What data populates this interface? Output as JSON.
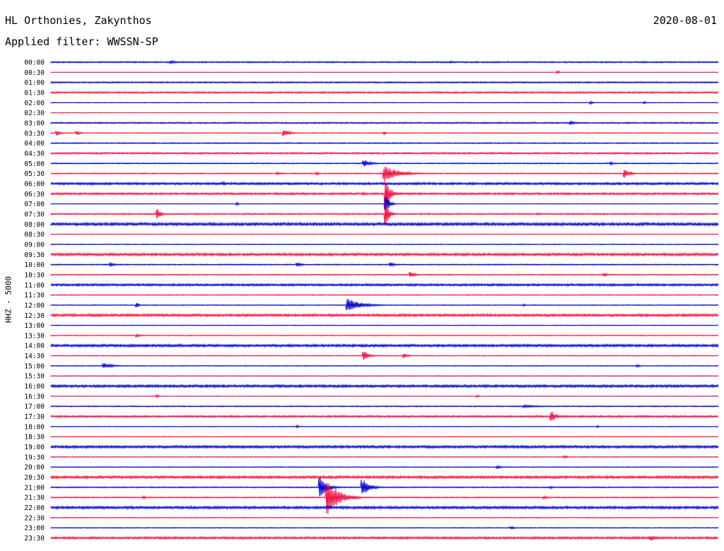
{
  "header": {
    "station": "HL Orthonies, Zakynthos",
    "date": "2020-08-01",
    "filter": "Applied filter: WWSSN-SP",
    "channel": "HHZ - 5000"
  },
  "chart_data": {
    "type": "line",
    "title": "HL Orthonies, Zakynthos",
    "colors": [
      "#0000cc",
      "#ee1144"
    ],
    "rows": [
      {
        "label": "00:00",
        "events": [
          {
            "t": 0.18,
            "a": 2,
            "d": 0.04
          },
          {
            "t": 0.6,
            "a": 1.5,
            "d": 0.02
          }
        ],
        "noise": 1
      },
      {
        "label": "00:30",
        "events": [
          {
            "t": 0.76,
            "a": 2,
            "d": 0.01
          }
        ],
        "noise": 0.4
      },
      {
        "label": "01:00",
        "events": [],
        "noise": 1
      },
      {
        "label": "01:30",
        "events": [],
        "noise": 1.2
      },
      {
        "label": "02:00",
        "events": [
          {
            "t": 0.81,
            "a": 2,
            "d": 0.01
          },
          {
            "t": 0.89,
            "a": 1.5,
            "d": 0.01
          }
        ],
        "noise": 0.5
      },
      {
        "label": "02:30",
        "events": [],
        "noise": 0.4
      },
      {
        "label": "03:00",
        "events": [
          {
            "t": 0.78,
            "a": 3,
            "d": 0.02
          }
        ],
        "noise": 1
      },
      {
        "label": "03:30",
        "events": [
          {
            "t": 0.01,
            "a": 4,
            "d": 0.015
          },
          {
            "t": 0.04,
            "a": 3,
            "d": 0.015
          },
          {
            "t": 0.35,
            "a": 5,
            "d": 0.025
          },
          {
            "t": 0.5,
            "a": 2,
            "d": 0.01
          }
        ],
        "noise": 0.6
      },
      {
        "label": "04:00",
        "events": [],
        "noise": 0.8
      },
      {
        "label": "04:30",
        "events": [],
        "noise": 1.2
      },
      {
        "label": "05:00",
        "events": [
          {
            "t": 0.47,
            "a": 5,
            "d": 0.03
          },
          {
            "t": 0.84,
            "a": 2,
            "d": 0.01
          }
        ],
        "noise": 0.8
      },
      {
        "label": "05:30",
        "events": [
          {
            "t": 0.34,
            "a": 2,
            "d": 0.02
          },
          {
            "t": 0.4,
            "a": 2,
            "d": 0.01
          },
          {
            "t": 0.5,
            "a": 12,
            "d": 0.06
          },
          {
            "t": 0.86,
            "a": 6,
            "d": 0.025
          }
        ],
        "noise": 0.8
      },
      {
        "label": "06:00",
        "events": [
          {
            "t": 0.26,
            "a": 3,
            "d": 0.01
          }
        ],
        "noise": 1.6
      },
      {
        "label": "06:30",
        "events": [
          {
            "t": 0.47,
            "a": 2,
            "d": 0.02
          },
          {
            "t": 0.502,
            "a": 22,
            "d": 0.02
          }
        ],
        "noise": 1.4
      },
      {
        "label": "07:00",
        "events": [
          {
            "t": 0.502,
            "a": 14,
            "d": 0.015
          },
          {
            "t": 0.28,
            "a": 2,
            "d": 0.005
          }
        ],
        "noise": 0.4
      },
      {
        "label": "07:30",
        "events": [
          {
            "t": 0.502,
            "a": 18,
            "d": 0.015
          },
          {
            "t": 0.16,
            "a": 8,
            "d": 0.015
          },
          {
            "t": 0.73,
            "a": 1.5,
            "d": 0.05
          }
        ],
        "noise": 1
      },
      {
        "label": "08:00",
        "events": [
          {
            "t": 0.23,
            "a": 2,
            "d": 0.01
          }
        ],
        "noise": 2
      },
      {
        "label": "08:30",
        "events": [],
        "noise": 0.5
      },
      {
        "label": "09:00",
        "events": [],
        "noise": 0.6
      },
      {
        "label": "09:30",
        "events": [],
        "noise": 1.8
      },
      {
        "label": "10:00",
        "events": [
          {
            "t": 0.09,
            "a": 3,
            "d": 0.02
          },
          {
            "t": 0.37,
            "a": 3,
            "d": 0.02
          },
          {
            "t": 0.51,
            "a": 3,
            "d": 0.02
          }
        ],
        "noise": 0.8
      },
      {
        "label": "10:30",
        "events": [
          {
            "t": 0.54,
            "a": 4,
            "d": 0.02
          },
          {
            "t": 0.83,
            "a": 3,
            "d": 0.015
          }
        ],
        "noise": 0.8
      },
      {
        "label": "11:00",
        "events": [],
        "noise": 1.6
      },
      {
        "label": "11:30",
        "events": [],
        "noise": 0.6
      },
      {
        "label": "12:00",
        "events": [
          {
            "t": 0.13,
            "a": 3,
            "d": 0.01
          },
          {
            "t": 0.445,
            "a": 9,
            "d": 0.06
          },
          {
            "t": 0.71,
            "a": 1.5,
            "d": 0.01
          }
        ],
        "noise": 0.6
      },
      {
        "label": "12:30",
        "events": [],
        "noise": 1.8
      },
      {
        "label": "13:00",
        "events": [],
        "noise": 0.5
      },
      {
        "label": "13:30",
        "events": [
          {
            "t": 0.13,
            "a": 2,
            "d": 0.02
          }
        ],
        "noise": 0.6
      },
      {
        "label": "14:00",
        "events": [],
        "noise": 1.8
      },
      {
        "label": "14:30",
        "events": [
          {
            "t": 0.47,
            "a": 7,
            "d": 0.02
          },
          {
            "t": 0.53,
            "a": 3,
            "d": 0.02
          }
        ],
        "noise": 0.6
      },
      {
        "label": "15:00",
        "events": [
          {
            "t": 0.08,
            "a": 4,
            "d": 0.04
          },
          {
            "t": 0.88,
            "a": 2,
            "d": 0.01
          }
        ],
        "noise": 0.6
      },
      {
        "label": "15:30",
        "events": [],
        "noise": 0.6
      },
      {
        "label": "16:00",
        "events": [],
        "noise": 1.8
      },
      {
        "label": "16:30",
        "events": [
          {
            "t": 0.16,
            "a": 2,
            "d": 0.01
          },
          {
            "t": 0.64,
            "a": 1.5,
            "d": 0.01
          }
        ],
        "noise": 0.5
      },
      {
        "label": "17:00",
        "events": [
          {
            "t": 0.71,
            "a": 2,
            "d": 0.08
          }
        ],
        "noise": 0.8
      },
      {
        "label": "17:30",
        "events": [
          {
            "t": 0.75,
            "a": 9,
            "d": 0.02
          }
        ],
        "noise": 1.4
      },
      {
        "label": "18:00",
        "events": [
          {
            "t": 0.37,
            "a": 2,
            "d": 0.005
          },
          {
            "t": 0.82,
            "a": 1.5,
            "d": 0.005
          }
        ],
        "noise": 0.5
      },
      {
        "label": "18:30",
        "events": [],
        "noise": 0.5
      },
      {
        "label": "19:00",
        "events": [],
        "noise": 1.8
      },
      {
        "label": "19:30",
        "events": [
          {
            "t": 0.77,
            "a": 2,
            "d": 0.02
          }
        ],
        "noise": 0.6
      },
      {
        "label": "20:00",
        "events": [
          {
            "t": 0.67,
            "a": 2,
            "d": 0.02
          }
        ],
        "noise": 0.6
      },
      {
        "label": "20:30",
        "events": [],
        "noise": 1.8
      },
      {
        "label": "21:00",
        "events": [
          {
            "t": 0.404,
            "a": 14,
            "d": 0.03
          },
          {
            "t": 0.468,
            "a": 11,
            "d": 0.03
          },
          {
            "t": 0.75,
            "a": 2,
            "d": 0.01
          }
        ],
        "noise": 0.8
      },
      {
        "label": "21:30",
        "events": [
          {
            "t": 0.415,
            "a": 24,
            "d": 0.05
          },
          {
            "t": 0.14,
            "a": 2,
            "d": 0.01
          },
          {
            "t": 0.74,
            "a": 2,
            "d": 0.02
          }
        ],
        "noise": 0.8
      },
      {
        "label": "22:00",
        "events": [],
        "noise": 1.8
      },
      {
        "label": "22:30",
        "events": [],
        "noise": 0.6
      },
      {
        "label": "23:00",
        "events": [
          {
            "t": 0.69,
            "a": 2,
            "d": 0.02
          }
        ],
        "noise": 0.6
      },
      {
        "label": "23:30",
        "events": [
          {
            "t": 0.9,
            "a": 4,
            "d": 0.02
          }
        ],
        "noise": 1.6
      }
    ]
  }
}
